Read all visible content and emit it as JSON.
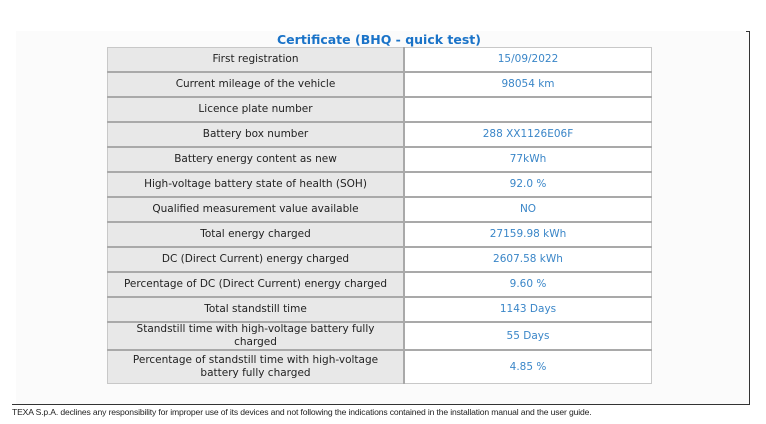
{
  "certificate": {
    "title": "Certificate (BHQ - quick test)",
    "rows": [
      {
        "label": "First registration",
        "value": "15/09/2022"
      },
      {
        "label": "Current mileage of the vehicle",
        "value": "98054 km"
      },
      {
        "label": "Licence plate number",
        "value": ""
      },
      {
        "label": "Battery box number",
        "value": "288 XX1126E06F"
      },
      {
        "label": "Battery energy content as new",
        "value": "77kWh"
      },
      {
        "label": "High-voltage battery state of health (SOH)",
        "value": "92.0 %"
      },
      {
        "label": "Qualified measurement value available",
        "value": "NO"
      },
      {
        "label": "Total energy charged",
        "value": "27159.98 kWh"
      },
      {
        "label": "DC (Direct Current) energy charged",
        "value": "2607.58 kWh"
      },
      {
        "label": "Percentage of DC (Direct Current) energy charged",
        "value": "9.60 %"
      },
      {
        "label": "Total standstill time",
        "value": "1143 Days"
      },
      {
        "label": "Standstill time with high-voltage battery fully charged",
        "value": "55 Days"
      },
      {
        "label": "Percentage of standstill time with high-voltage battery fully charged",
        "value": "4.85 %"
      }
    ]
  },
  "footer": {
    "disclaimer": "TEXA S.p.A. declines any responsibility for improper use of its devices and not following the indications contained in the installation manual and the user guide."
  },
  "colors": {
    "title": "#1a73c8",
    "value_text": "#3a86c8",
    "label_bg": "#e8e8e8"
  }
}
